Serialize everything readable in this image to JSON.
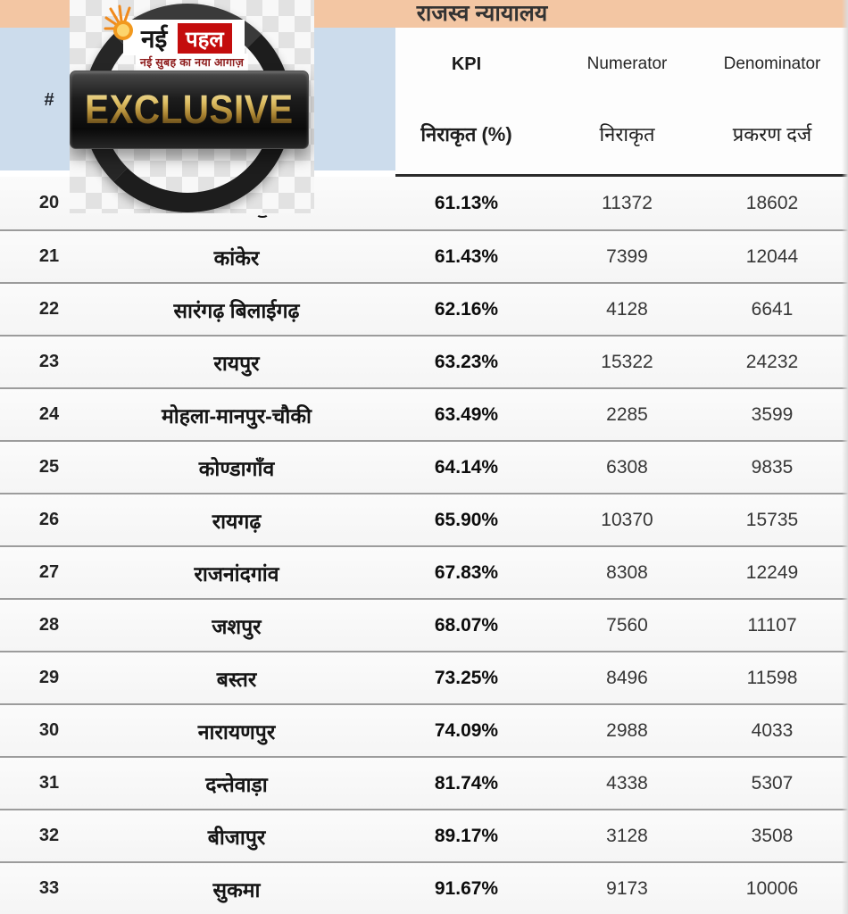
{
  "header": {
    "title": "राजस्व न्यायालय"
  },
  "watermark": {
    "brand_first_word": "नई",
    "brand_second_word": "पहल",
    "tagline": "नई सुबह का नया आगाज़",
    "stamp_text": "EXCLUSIVE"
  },
  "table": {
    "header": {
      "index": "#",
      "kpi_label": "KPI",
      "kpi_sub": "निराकृत (%)",
      "numerator_label": "Numerator",
      "numerator_sub": "निराकृत",
      "denominator_label": "Denominator",
      "denominator_sub": "प्रकरण दर्ज"
    },
    "row20_name_obscured_by_watermark": true,
    "rows": [
      {
        "index": "20",
        "name": "",
        "kpi": "61.13%",
        "numerator": "11372",
        "denominator": "18602"
      },
      {
        "index": "21",
        "name": "कांकेर",
        "kpi": "61.43%",
        "numerator": "7399",
        "denominator": "12044"
      },
      {
        "index": "22",
        "name": "सारंगढ़ बिलाईगढ़",
        "kpi": "62.16%",
        "numerator": "4128",
        "denominator": "6641"
      },
      {
        "index": "23",
        "name": "रायपुर",
        "kpi": "63.23%",
        "numerator": "15322",
        "denominator": "24232"
      },
      {
        "index": "24",
        "name": "मोहला-मानपुर-चौकी",
        "kpi": "63.49%",
        "numerator": "2285",
        "denominator": "3599"
      },
      {
        "index": "25",
        "name": "कोण्डागाँव",
        "kpi": "64.14%",
        "numerator": "6308",
        "denominator": "9835"
      },
      {
        "index": "26",
        "name": "रायगढ़",
        "kpi": "65.90%",
        "numerator": "10370",
        "denominator": "15735"
      },
      {
        "index": "27",
        "name": "राजनांदगांव",
        "kpi": "67.83%",
        "numerator": "8308",
        "denominator": "12249"
      },
      {
        "index": "28",
        "name": "जशपुर",
        "kpi": "68.07%",
        "numerator": "7560",
        "denominator": "11107"
      },
      {
        "index": "29",
        "name": "बस्तर",
        "kpi": "73.25%",
        "numerator": "8496",
        "denominator": "11598"
      },
      {
        "index": "30",
        "name": "नारायणपुर",
        "kpi": "74.09%",
        "numerator": "2988",
        "denominator": "4033"
      },
      {
        "index": "31",
        "name": "दन्तेवाड़ा",
        "kpi": "81.74%",
        "numerator": "4338",
        "denominator": "5307"
      },
      {
        "index": "32",
        "name": "बीजापुर",
        "kpi": "89.17%",
        "numerator": "3128",
        "denominator": "3508"
      },
      {
        "index": "33",
        "name": "सुकमा",
        "kpi": "91.67%",
        "numerator": "9173",
        "denominator": "10006"
      }
    ]
  },
  "colors": {
    "title_bar_bg": "#f3c6a3",
    "header_left_bg": "#ccdcec",
    "row_separator": "#9c9c9c",
    "header_underline": "#2b2b2b",
    "brand_red": "#c40d0d",
    "stamp_gold": "#caa34c",
    "stamp_black": "#1d1d1d"
  }
}
